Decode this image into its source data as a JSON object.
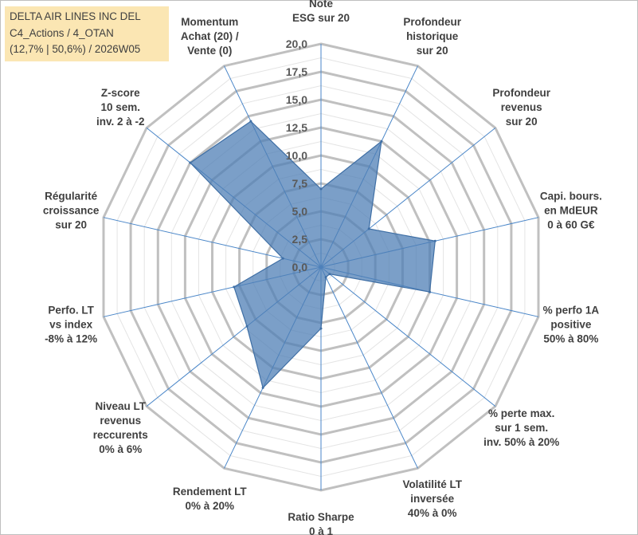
{
  "info_box": {
    "line1": "DELTA AIR LINES INC DEL",
    "line2": "C4_Actions / 4_OTAN",
    "line3": "(12,7% | 50,6%) / 2026W05"
  },
  "colors": {
    "fill": "#4f7fb5",
    "stroke": "#3f6fa5",
    "grid_major": "#c0c0c0",
    "grid_minor": "#e4e4e4",
    "spoke": "#4a86c8",
    "text": "#404040"
  },
  "chart_data": {
    "type": "radar",
    "rmin": 0,
    "rmax": 20,
    "major_step": 2.5,
    "minor_step": 1.25,
    "tick_labels": [
      "0,0",
      "2,5",
      "5,0",
      "7,5",
      "10,0",
      "12,5",
      "15,0",
      "17,5",
      "20,0"
    ],
    "axes": [
      {
        "label": [
          "Note",
          "ESG sur 20"
        ],
        "value": 7.0
      },
      {
        "label": [
          "Profondeur",
          "historique",
          "sur 20"
        ],
        "value": 12.5
      },
      {
        "label": [
          "Profondeur",
          "revenus",
          "sur 20"
        ],
        "value": 5.5
      },
      {
        "label": [
          "Capi. bours.",
          "en MdEUR",
          "0 à 60 G€"
        ],
        "value": 10.5
      },
      {
        "label": [
          "% perfo 1A",
          "positive",
          "50% à 80%"
        ],
        "value": 10.0
      },
      {
        "label": [
          "% perte max.",
          "sur 1 sem.",
          "inv. 50% à 20%"
        ],
        "value": 1.0
      },
      {
        "label": [
          "Volatilité LT",
          "inversée",
          "40% à 0%"
        ],
        "value": 1.0
      },
      {
        "label": [
          "Ratio Sharpe",
          "0 à 1"
        ],
        "value": 5.5
      },
      {
        "label": [
          "Rendement LT",
          "0% à 20%"
        ],
        "value": 12.0
      },
      {
        "label": [
          "Niveau LT",
          "revenus",
          "reccurents",
          "0% à 6%"
        ],
        "value": 8.5
      },
      {
        "label": [
          "Perfo. LT",
          "vs index",
          "-8% à 12%"
        ],
        "value": 8.0
      },
      {
        "label": [
          "Régularité",
          "croissance",
          "sur 20"
        ],
        "value": 3.5
      },
      {
        "label": [
          "Z-score",
          "10 sem.",
          "inv. 2 à -2"
        ],
        "value": 15.0
      },
      {
        "label": [
          "Momentum",
          "Achat (20) /",
          "Vente (0)"
        ],
        "value": 14.5
      }
    ]
  }
}
